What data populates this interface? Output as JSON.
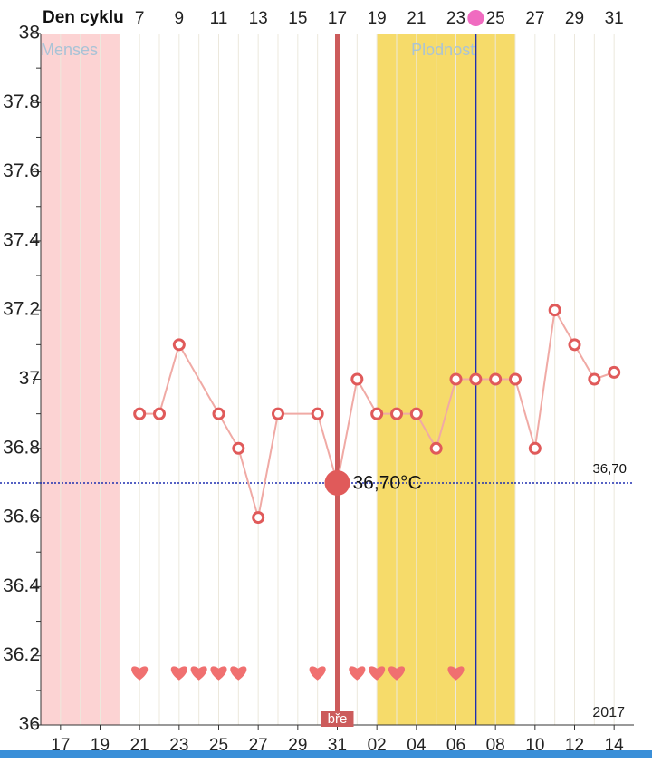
{
  "chart_data": {
    "type": "line",
    "x_label": "Den cyklu",
    "year": "2017",
    "xlim": [
      2,
      32
    ],
    "ylim": [
      36,
      38
    ],
    "xticks": [
      7,
      9,
      11,
      13,
      15,
      17,
      19,
      21,
      23,
      25,
      27,
      29,
      31
    ],
    "date_ticks": [
      {
        "value": 3,
        "label": "17"
      },
      {
        "value": 5,
        "label": "19"
      },
      {
        "value": 7,
        "label": "21"
      },
      {
        "value": 9,
        "label": "23"
      },
      {
        "value": 11,
        "label": "25"
      },
      {
        "value": 13,
        "label": "27"
      },
      {
        "value": 15,
        "label": "29"
      },
      {
        "value": 17,
        "label": "31"
      },
      {
        "value": 19,
        "label": "02"
      },
      {
        "value": 21,
        "label": "04"
      },
      {
        "value": 23,
        "label": "06"
      },
      {
        "value": 25,
        "label": "08"
      },
      {
        "value": 27,
        "label": "10"
      },
      {
        "value": 29,
        "label": "12"
      },
      {
        "value": 31,
        "label": "14"
      }
    ],
    "xgrid": [
      3,
      4,
      5,
      6,
      7,
      8,
      9,
      10,
      11,
      12,
      13,
      14,
      15,
      16,
      17,
      18,
      19,
      20,
      21,
      22,
      23,
      24,
      25,
      26,
      27,
      28,
      29,
      30,
      31
    ],
    "yticks": [
      36,
      36.2,
      36.4,
      36.6,
      36.8,
      37,
      37.2,
      37.4,
      37.6,
      37.8,
      38
    ],
    "yticks_minor": [
      36.1,
      36.3,
      36.5,
      36.7,
      36.9,
      37.1,
      37.3,
      37.5,
      37.7,
      37.9
    ],
    "series": [
      {
        "color": "#e05a5a",
        "x": [
          7,
          8,
          9,
          11,
          12,
          13,
          14,
          16,
          17,
          18,
          19,
          20,
          21,
          22,
          23,
          24,
          25,
          26,
          27,
          28,
          29,
          30,
          31
        ],
        "values": [
          36.9,
          36.9,
          37.1,
          36.9,
          36.8,
          36.6,
          36.9,
          36.9,
          36.7,
          37,
          36.9,
          36.9,
          36.9,
          36.8,
          37,
          37,
          37,
          37,
          36.8,
          37.2,
          37.1,
          37,
          37.02
        ]
      }
    ],
    "selected_index": 8,
    "selected_label": "36,70°C",
    "selected_tag": "bře",
    "reference_line": {
      "value": 36.7,
      "label": "36,70"
    },
    "bands": [
      {
        "label": "Menses",
        "start": 2,
        "end": 6,
        "color": "#fcd3d3"
      },
      {
        "label": "Plodnost",
        "start": 19,
        "end": 26,
        "color": "#f6db6a"
      }
    ],
    "ovulation": {
      "x": 24,
      "color": "#1f2fb0"
    },
    "hearts": {
      "x": [
        7,
        9,
        10,
        11,
        12,
        16,
        18,
        19,
        20,
        23
      ],
      "y": 36.15,
      "color": "#f07070"
    }
  }
}
